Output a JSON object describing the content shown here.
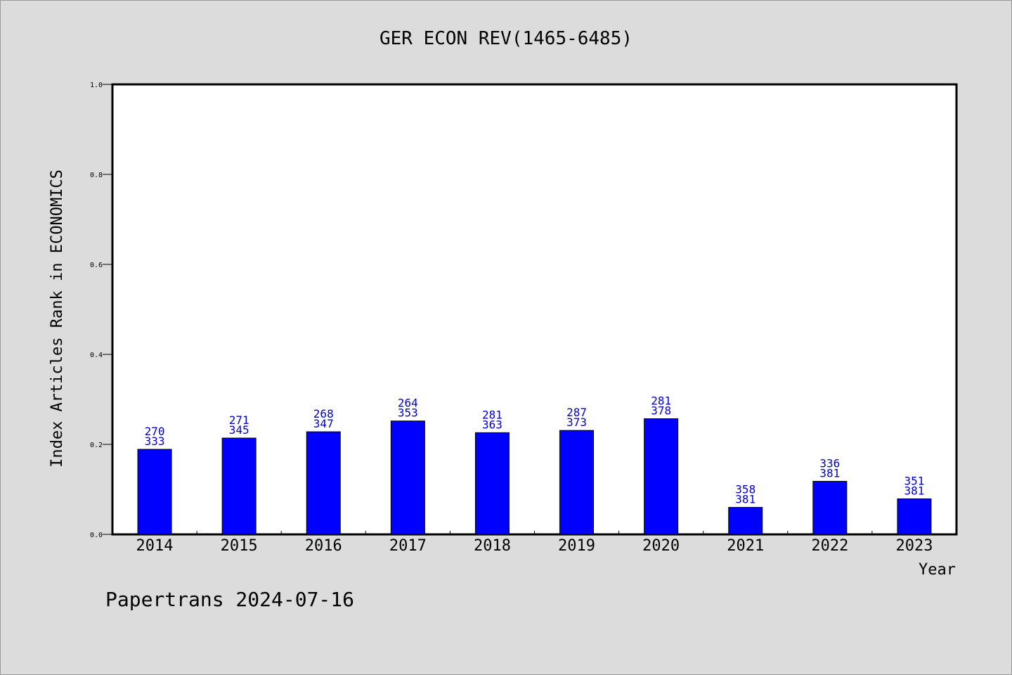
{
  "chart_data": {
    "type": "bar",
    "title": "GER ECON REV(1465-6485)",
    "xlabel": "Year",
    "ylabel": "Index Articles Rank in ECONOMICS",
    "ylim": [
      0,
      1.0
    ],
    "yticks": [
      "0.0",
      "0.2",
      "0.4",
      "0.6",
      "0.8",
      "1.0"
    ],
    "categories": [
      "2014",
      "2015",
      "2016",
      "2017",
      "2018",
      "2019",
      "2020",
      "2021",
      "2022",
      "2023"
    ],
    "values": [
      0.189,
      0.214,
      0.228,
      0.252,
      0.226,
      0.231,
      0.257,
      0.06,
      0.118,
      0.079
    ],
    "rank_labels": [
      "270",
      "271",
      "268",
      "264",
      "281",
      "287",
      "281",
      "358",
      "336",
      "351"
    ],
    "total_labels": [
      "333",
      "345",
      "347",
      "353",
      "363",
      "373",
      "378",
      "381",
      "381",
      "381"
    ],
    "grid": false,
    "colors": {
      "bar": "#0000ff",
      "label": "#0000cc",
      "background": "#dcdcdc",
      "plot": "#ffffff"
    }
  },
  "footer": "Papertrans 2024-07-16"
}
